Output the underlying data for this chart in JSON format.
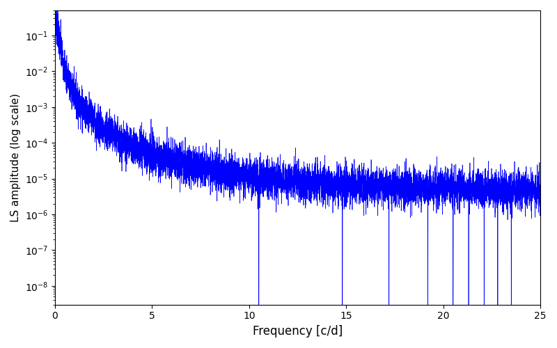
{
  "title": "",
  "xlabel": "Frequency [c/d]",
  "ylabel": "LS amplitude (log scale)",
  "line_color": "#0000ff",
  "xlim": [
    0,
    25
  ],
  "ylim": [
    3e-09,
    0.5
  ],
  "freq_max": 25.0,
  "n_points": 8000,
  "seed": 7,
  "background_color": "#ffffff",
  "figsize": [
    8.0,
    5.0
  ],
  "dpi": 100
}
